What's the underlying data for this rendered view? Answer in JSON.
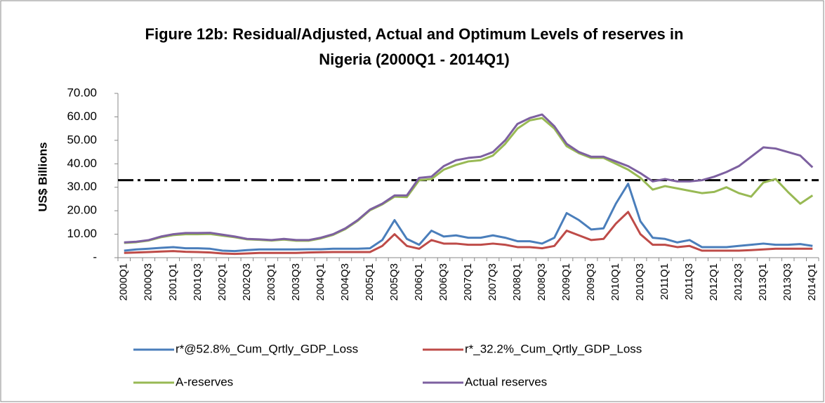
{
  "chart_data": {
    "type": "line",
    "title": [
      "Figure 12b: Residual/Adjusted, Actual and Optimum Levels of reserves in",
      "Nigeria (2000Q1 - 2014Q1)"
    ],
    "y_label": "US$ Billions",
    "categories": [
      "2000Q1",
      null,
      "2000Q3",
      null,
      "2001Q1",
      null,
      "2001Q3",
      null,
      "2002Q1",
      null,
      "2002Q3",
      null,
      "2003Q1",
      null,
      "2003Q3",
      null,
      "2004Q1",
      null,
      "2004Q3",
      null,
      "2005Q1",
      null,
      "2005Q3",
      null,
      "2006Q1",
      null,
      "2006Q3",
      null,
      "2007Q1",
      null,
      "2007Q3",
      null,
      "2008Q1",
      null,
      "2008Q3",
      null,
      "2009Q1",
      null,
      "2009Q3",
      null,
      "2010Q1",
      null,
      "2010Q3",
      null,
      "2011Q1",
      null,
      "2011Q3",
      null,
      "2012Q1",
      null,
      "2012Q3",
      null,
      "2013Q1",
      null,
      "2013Q3",
      null,
      "2014Q1"
    ],
    "series": [
      {
        "name": "r*@52.8%_Cum_Qrtly_GDP_Loss",
        "color": "#4a7ebb",
        "values": [
          3.0,
          3.5,
          3.8,
          4.2,
          4.5,
          4.0,
          4.0,
          3.8,
          3.0,
          2.8,
          3.2,
          3.5,
          3.5,
          3.5,
          3.5,
          3.6,
          3.6,
          3.8,
          3.8,
          3.8,
          4.0,
          7.5,
          16.0,
          8.0,
          5.5,
          11.5,
          9.0,
          9.5,
          8.5,
          8.5,
          9.5,
          8.5,
          7.0,
          7.0,
          6.0,
          8.5,
          19.0,
          16.0,
          12.0,
          12.5,
          23.0,
          31.5,
          15.5,
          8.5,
          8.0,
          6.5,
          7.5,
          4.5,
          4.5,
          4.5,
          5.0,
          5.5,
          6.0,
          5.5,
          5.5,
          5.8,
          5.0
        ]
      },
      {
        "name": "r*_32.2%_Cum_Qrtly_GDP_Loss",
        "color": "#be4b48",
        "values": [
          2.0,
          2.2,
          2.4,
          2.6,
          2.8,
          2.5,
          2.4,
          2.2,
          1.8,
          1.6,
          1.8,
          2.0,
          2.0,
          2.0,
          2.0,
          2.2,
          2.3,
          2.4,
          2.4,
          2.4,
          2.4,
          5.0,
          10.0,
          5.0,
          3.8,
          7.5,
          6.0,
          6.0,
          5.5,
          5.5,
          6.0,
          5.5,
          4.5,
          4.5,
          4.0,
          5.0,
          11.5,
          9.5,
          7.5,
          8.0,
          14.5,
          19.5,
          10.0,
          5.5,
          5.5,
          4.5,
          5.0,
          3.0,
          3.0,
          3.0,
          3.0,
          3.2,
          3.5,
          3.8,
          3.8,
          3.8,
          3.8
        ]
      },
      {
        "name": "A-reserves",
        "color": "#98b954",
        "values": [
          6.3,
          6.6,
          7.3,
          8.7,
          9.6,
          10.0,
          10.0,
          10.1,
          9.4,
          8.7,
          7.8,
          7.6,
          7.3,
          7.7,
          7.2,
          7.2,
          8.2,
          9.7,
          12.2,
          15.7,
          20.2,
          22.7,
          26.0,
          25.8,
          33.0,
          33.5,
          37.5,
          39.5,
          41.0,
          41.5,
          43.5,
          48.5,
          55.0,
          58.5,
          59.5,
          55.0,
          47.5,
          44.5,
          42.5,
          42.5,
          40.0,
          37.5,
          34.0,
          29.0,
          30.5,
          29.5,
          28.5,
          27.5,
          28.0,
          30.0,
          27.5,
          26.0,
          32.0,
          33.5,
          28.0,
          23.0,
          26.5
        ]
      },
      {
        "name": "Actual reserves",
        "color": "#7d60a0",
        "values": [
          6.5,
          6.8,
          7.5,
          9.0,
          10.0,
          10.5,
          10.5,
          10.6,
          9.8,
          9.0,
          8.0,
          7.8,
          7.5,
          8.0,
          7.5,
          7.5,
          8.5,
          10.0,
          12.5,
          16.0,
          20.5,
          23.0,
          26.5,
          26.5,
          34.0,
          34.5,
          39.0,
          41.5,
          42.5,
          43.0,
          45.0,
          50.0,
          57.0,
          59.5,
          61.0,
          56.0,
          48.5,
          45.0,
          43.0,
          43.0,
          41.0,
          39.0,
          36.0,
          32.5,
          33.5,
          32.5,
          32.5,
          33.0,
          34.5,
          36.5,
          39.0,
          43.0,
          47.0,
          46.5,
          45.0,
          43.5,
          38.5
        ]
      }
    ],
    "reference_line": {
      "value": 33,
      "color": "#000000"
    },
    "ylim": [
      0,
      70
    ],
    "yticks": [
      {
        "value": 0,
        "label": "-"
      },
      {
        "value": 10,
        "label": "10.00"
      },
      {
        "value": 20,
        "label": "20.00"
      },
      {
        "value": 30,
        "label": "30.00"
      },
      {
        "value": 40,
        "label": "40.00"
      },
      {
        "value": 50,
        "label": "50.00"
      },
      {
        "value": 60,
        "label": "60.00"
      },
      {
        "value": 70,
        "label": "70.00"
      }
    ],
    "grid": false,
    "legend": "bottom"
  }
}
